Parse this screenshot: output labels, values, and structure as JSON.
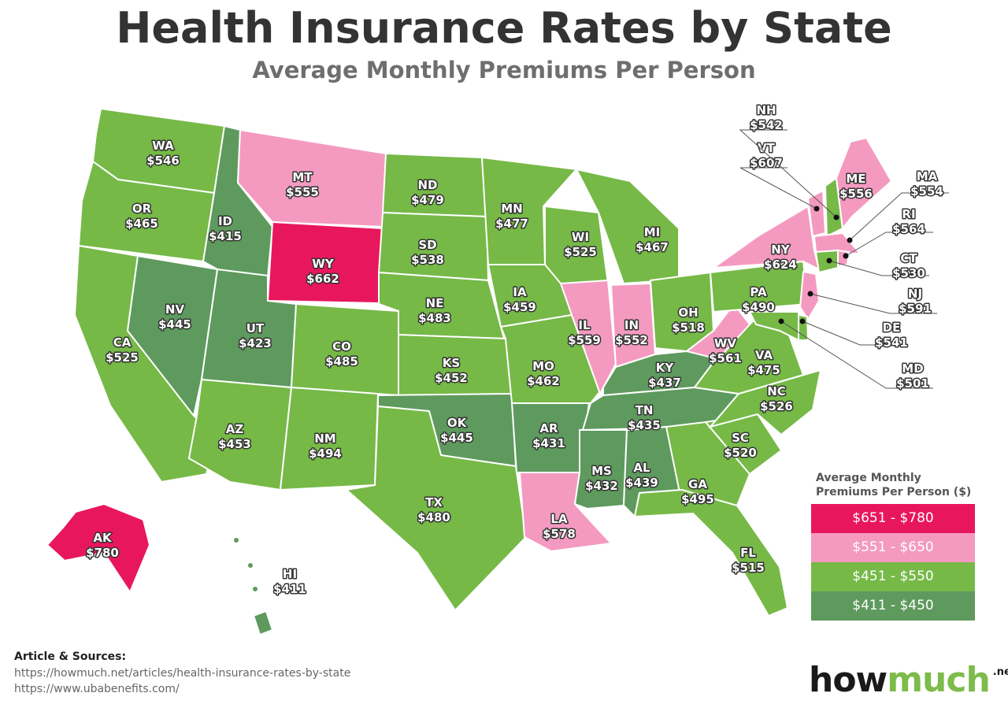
{
  "title": "Health Insurance Rates by State",
  "subtitle": "Average Monthly Premiums Per Person",
  "legend": {
    "title_line1": "Average Monthly",
    "title_line2": "Premiums Per Person ($)",
    "tiers": [
      {
        "label": "$651 - $780",
        "color": "#e8175d"
      },
      {
        "label": "$551 - $650",
        "color": "#f49ac1"
      },
      {
        "label": "$451 - $550",
        "color": "#76b947"
      },
      {
        "label": "$411 - $450",
        "color": "#5e9a5d"
      }
    ]
  },
  "states": [
    {
      "abbr": "WA",
      "value": "$546",
      "tier": 2
    },
    {
      "abbr": "OR",
      "value": "$465",
      "tier": 2
    },
    {
      "abbr": "CA",
      "value": "$525",
      "tier": 2
    },
    {
      "abbr": "NV",
      "value": "$445",
      "tier": 3
    },
    {
      "abbr": "ID",
      "value": "$415",
      "tier": 3
    },
    {
      "abbr": "MT",
      "value": "$555",
      "tier": 1
    },
    {
      "abbr": "WY",
      "value": "$662",
      "tier": 0
    },
    {
      "abbr": "UT",
      "value": "$423",
      "tier": 3
    },
    {
      "abbr": "CO",
      "value": "$485",
      "tier": 2
    },
    {
      "abbr": "AZ",
      "value": "$453",
      "tier": 2
    },
    {
      "abbr": "NM",
      "value": "$494",
      "tier": 2
    },
    {
      "abbr": "ND",
      "value": "$479",
      "tier": 2
    },
    {
      "abbr": "SD",
      "value": "$538",
      "tier": 2
    },
    {
      "abbr": "NE",
      "value": "$483",
      "tier": 2
    },
    {
      "abbr": "KS",
      "value": "$452",
      "tier": 2
    },
    {
      "abbr": "OK",
      "value": "$445",
      "tier": 3
    },
    {
      "abbr": "TX",
      "value": "$480",
      "tier": 2
    },
    {
      "abbr": "MN",
      "value": "$477",
      "tier": 2
    },
    {
      "abbr": "IA",
      "value": "$459",
      "tier": 2
    },
    {
      "abbr": "MO",
      "value": "$462",
      "tier": 2
    },
    {
      "abbr": "AR",
      "value": "$431",
      "tier": 3
    },
    {
      "abbr": "LA",
      "value": "$578",
      "tier": 1
    },
    {
      "abbr": "WI",
      "value": "$525",
      "tier": 2
    },
    {
      "abbr": "IL",
      "value": "$559",
      "tier": 1
    },
    {
      "abbr": "MI",
      "value": "$467",
      "tier": 2
    },
    {
      "abbr": "IN",
      "value": "$552",
      "tier": 1
    },
    {
      "abbr": "OH",
      "value": "$518",
      "tier": 2
    },
    {
      "abbr": "KY",
      "value": "$437",
      "tier": 3
    },
    {
      "abbr": "TN",
      "value": "$435",
      "tier": 3
    },
    {
      "abbr": "MS",
      "value": "$432",
      "tier": 3
    },
    {
      "abbr": "AL",
      "value": "$439",
      "tier": 3
    },
    {
      "abbr": "GA",
      "value": "$495",
      "tier": 2
    },
    {
      "abbr": "FL",
      "value": "$515",
      "tier": 2
    },
    {
      "abbr": "SC",
      "value": "$520",
      "tier": 2
    },
    {
      "abbr": "NC",
      "value": "$526",
      "tier": 2
    },
    {
      "abbr": "VA",
      "value": "$475",
      "tier": 2
    },
    {
      "abbr": "WV",
      "value": "$561",
      "tier": 1
    },
    {
      "abbr": "PA",
      "value": "$490",
      "tier": 2
    },
    {
      "abbr": "NY",
      "value": "$624",
      "tier": 1
    },
    {
      "abbr": "VT",
      "value": "$607",
      "tier": 1
    },
    {
      "abbr": "NH",
      "value": "$542",
      "tier": 2
    },
    {
      "abbr": "ME",
      "value": "$556",
      "tier": 1
    },
    {
      "abbr": "MA",
      "value": "$554",
      "tier": 1
    },
    {
      "abbr": "CT",
      "value": "$530",
      "tier": 2
    },
    {
      "abbr": "RI",
      "value": "$564",
      "tier": 1
    },
    {
      "abbr": "NJ",
      "value": "$591",
      "tier": 1
    },
    {
      "abbr": "DE",
      "value": "$541",
      "tier": 2
    },
    {
      "abbr": "MD",
      "value": "$501",
      "tier": 2
    },
    {
      "abbr": "AK",
      "value": "$780",
      "tier": 0
    },
    {
      "abbr": "HI",
      "value": "$411",
      "tier": 3
    }
  ],
  "sources": {
    "heading": "Article & Sources:",
    "urls": [
      "https://howmuch.net/articles/health-insurance-rates-by-state",
      "https://www.ubabenefits.com/"
    ]
  },
  "logo": {
    "part1": "how",
    "part2": "much",
    "suffix": ".net"
  }
}
